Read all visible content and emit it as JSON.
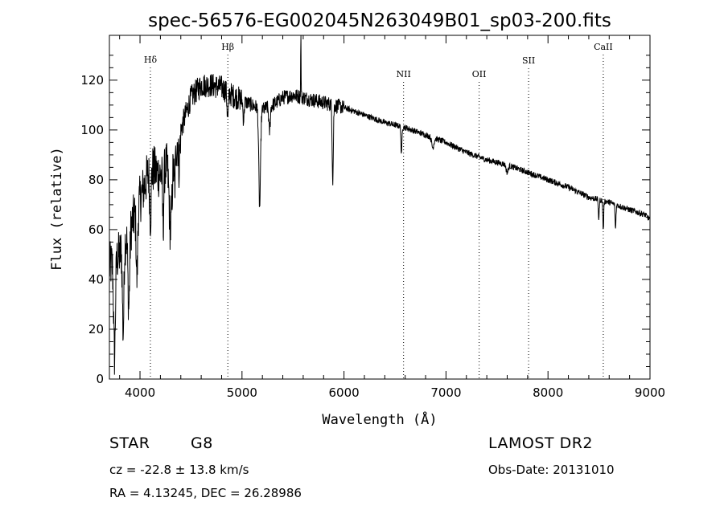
{
  "chart_data": {
    "type": "line",
    "title": "spec-56576-EG002045N263049B01_sp03-200.fits",
    "xlabel": "Wavelength (Å)",
    "ylabel": "Flux (relative)",
    "xlim": [
      3700,
      9000
    ],
    "ylim": [
      0,
      138
    ],
    "xticks": [
      4000,
      5000,
      6000,
      7000,
      8000,
      9000
    ],
    "yticks": [
      0,
      20,
      40,
      60,
      80,
      100,
      120
    ],
    "grid": false,
    "line_markers": [
      {
        "name": "Hδ",
        "x": 4102
      },
      {
        "name": "Hβ",
        "x": 4861
      },
      {
        "name": "NII",
        "x": 6584
      },
      {
        "name": "OII",
        "x": 7325
      },
      {
        "name": "SII",
        "x": 7810
      },
      {
        "name": "CaII",
        "x": 8542
      }
    ],
    "continuum": [
      [
        3700,
        45
      ],
      [
        3800,
        50
      ],
      [
        3900,
        60
      ],
      [
        4000,
        72
      ],
      [
        4100,
        85
      ],
      [
        4200,
        82
      ],
      [
        4300,
        88
      ],
      [
        4400,
        100
      ],
      [
        4500,
        113
      ],
      [
        4600,
        118
      ],
      [
        4700,
        118
      ],
      [
        4800,
        117
      ],
      [
        4900,
        114
      ],
      [
        5000,
        112
      ],
      [
        5100,
        110
      ],
      [
        5200,
        108
      ],
      [
        5300,
        110
      ],
      [
        5400,
        113
      ],
      [
        5500,
        114
      ],
      [
        5600,
        113
      ],
      [
        5700,
        112
      ],
      [
        5800,
        111
      ],
      [
        5900,
        110
      ],
      [
        6000,
        109
      ],
      [
        6200,
        106
      ],
      [
        6400,
        103
      ],
      [
        6600,
        101
      ],
      [
        6800,
        98
      ],
      [
        7000,
        95
      ],
      [
        7200,
        91
      ],
      [
        7400,
        88
      ],
      [
        7600,
        86
      ],
      [
        7800,
        83
      ],
      [
        8000,
        80
      ],
      [
        8200,
        77
      ],
      [
        8400,
        73
      ],
      [
        8600,
        71
      ],
      [
        8800,
        68
      ],
      [
        8950,
        66
      ],
      [
        9000,
        64
      ]
    ],
    "absorption_features": [
      [
        3750,
        38,
        12
      ],
      [
        3835,
        35,
        10
      ],
      [
        3890,
        30,
        12
      ],
      [
        3970,
        28,
        10
      ],
      [
        4102,
        20,
        10
      ],
      [
        4227,
        22,
        8
      ],
      [
        4300,
        28,
        20
      ],
      [
        4340,
        15,
        10
      ],
      [
        4383,
        12,
        10
      ],
      [
        4861,
        10,
        10
      ],
      [
        5015,
        8,
        8
      ],
      [
        5173,
        40,
        12
      ],
      [
        5270,
        10,
        10
      ],
      [
        5890,
        30,
        8
      ],
      [
        6563,
        12,
        6
      ],
      [
        6870,
        4,
        15
      ],
      [
        7600,
        3,
        15
      ],
      [
        8498,
        8,
        6
      ],
      [
        8542,
        12,
        6
      ],
      [
        8662,
        10,
        6
      ]
    ],
    "emission_spikes": [
      [
        5577,
        25,
        3
      ]
    ]
  },
  "info": {
    "object_class": "STAR",
    "subclass": "G8",
    "survey": "LAMOST DR2",
    "cz": "cz = -22.8 ± 13.8 km/s",
    "obs_date": "Obs-Date: 20131010",
    "coords": "RA =   4.13245, DEC =  26.28986"
  }
}
